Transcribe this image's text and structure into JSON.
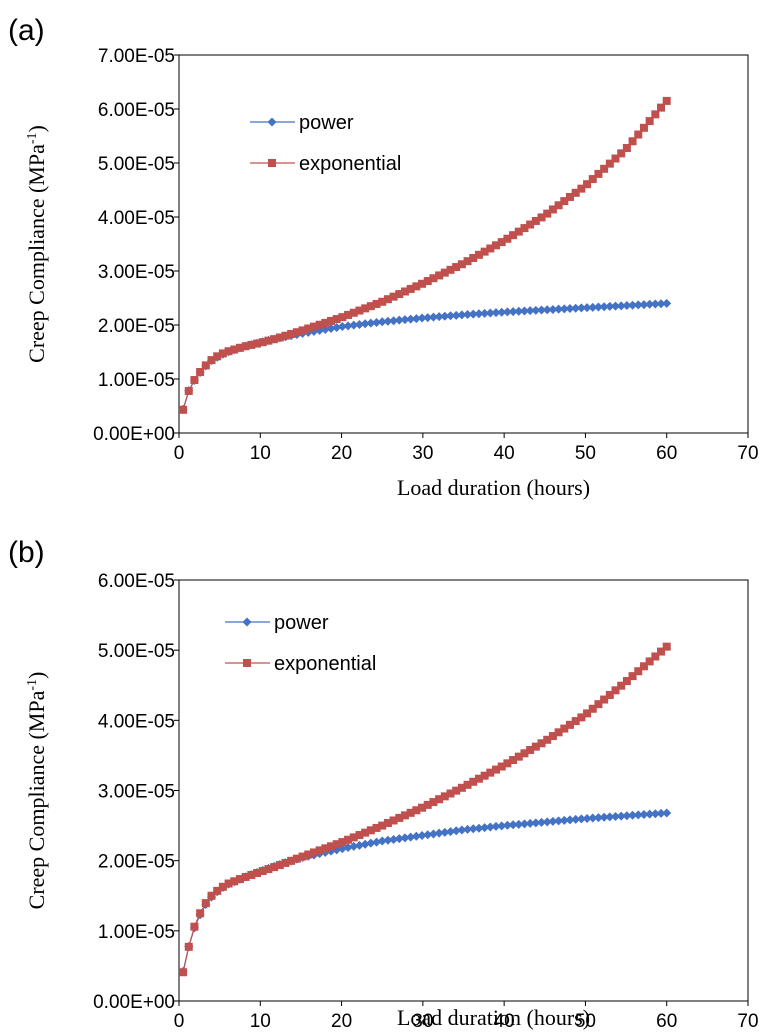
{
  "chart_data": [
    {
      "panel": "(a)",
      "type": "line",
      "xlabel": "Load duration  (hours)",
      "ylabel": {
        "main": "Creep Compliance  (MPa",
        "sup": "-1",
        "end": ")"
      },
      "xlim": [
        0,
        70
      ],
      "ylim": [
        0,
        7e-05
      ],
      "xticks": [
        "0",
        "10",
        "20",
        "30",
        "40",
        "50",
        "60",
        "70"
      ],
      "yticks": [
        "0.00E+00",
        "1.00E-05",
        "2.00E-05",
        "3.00E-05",
        "4.00E-05",
        "5.00E-05",
        "6.00E-05",
        "7.00E-05"
      ],
      "grid": false,
      "legend_position": "top-left",
      "series": [
        {
          "name": "power",
          "color": "#4472C4",
          "marker": "diamond",
          "x": [
            0.5,
            1,
            2,
            3,
            4,
            5,
            6,
            8,
            10,
            12,
            15,
            20,
            25,
            30,
            35,
            40,
            45,
            50,
            55,
            60
          ],
          "y": [
            4.4e-06,
            7.3e-06,
            1e-05,
            1.2e-05,
            1.34e-05,
            1.43e-05,
            1.5e-05,
            1.6e-05,
            1.68e-05,
            1.75e-05,
            1.84e-05,
            1.97e-05,
            2.06e-05,
            2.13e-05,
            2.19e-05,
            2.24e-05,
            2.28e-05,
            2.32e-05,
            2.36e-05,
            2.4e-05
          ]
        },
        {
          "name": "exponential",
          "color": "#C0504D",
          "marker": "square",
          "x": [
            0.5,
            1,
            2,
            3,
            4,
            5,
            6,
            8,
            10,
            12,
            15,
            20,
            25,
            30,
            35,
            40,
            45,
            50,
            55,
            60
          ],
          "y": [
            4.3e-06,
            7.2e-06,
            1.01e-05,
            1.21e-05,
            1.35e-05,
            1.45e-05,
            1.51e-05,
            1.6e-05,
            1.67e-05,
            1.75e-05,
            1.89e-05,
            2.14e-05,
            2.43e-05,
            2.77e-05,
            3.14e-05,
            3.56e-05,
            4.03e-05,
            4.58e-05,
            5.26e-05,
            6.15e-05
          ]
        }
      ]
    },
    {
      "panel": "(b)",
      "type": "line",
      "xlabel": "Load duration (hours)",
      "ylabel": {
        "main": "Creep Compliance  (MPa",
        "sup": "-1",
        "end": ")"
      },
      "xlim": [
        0,
        70
      ],
      "ylim": [
        0,
        6e-05
      ],
      "xticks": [
        "0",
        "10",
        "20",
        "30",
        "40",
        "50",
        "60",
        "70"
      ],
      "yticks": [
        "0.00E+00",
        "1.00E-05",
        "2.00E-05",
        "3.00E-05",
        "4.00E-05",
        "5.00E-05",
        "6.00E-05"
      ],
      "grid": false,
      "legend_position": "top-left",
      "series": [
        {
          "name": "power",
          "color": "#4472C4",
          "marker": "diamond",
          "x": [
            0.5,
            1,
            2,
            3,
            4,
            5,
            6,
            8,
            10,
            12,
            15,
            20,
            25,
            30,
            35,
            40,
            45,
            50,
            55,
            60
          ],
          "y": [
            4.2e-06,
            7e-06,
            1.08e-05,
            1.33e-05,
            1.48e-05,
            1.59e-05,
            1.66e-05,
            1.76e-05,
            1.85e-05,
            1.93e-05,
            2.04e-05,
            2.17e-05,
            2.28e-05,
            2.36e-05,
            2.44e-05,
            2.5e-05,
            2.55e-05,
            2.6e-05,
            2.64e-05,
            2.68e-05
          ]
        },
        {
          "name": "exponential",
          "color": "#C0504D",
          "marker": "square",
          "x": [
            0.5,
            1,
            2,
            3,
            4,
            5,
            6,
            8,
            10,
            12,
            15,
            20,
            25,
            30,
            35,
            40,
            45,
            50,
            55,
            60
          ],
          "y": [
            4.1e-06,
            6.9e-06,
            1.1e-05,
            1.35e-05,
            1.5e-05,
            1.6e-05,
            1.67e-05,
            1.76e-05,
            1.84e-05,
            1.92e-05,
            2.05e-05,
            2.26e-05,
            2.5e-05,
            2.76e-05,
            3.05e-05,
            3.36e-05,
            3.7e-05,
            4.08e-05,
            4.55e-05,
            5.05e-05
          ]
        }
      ]
    }
  ]
}
